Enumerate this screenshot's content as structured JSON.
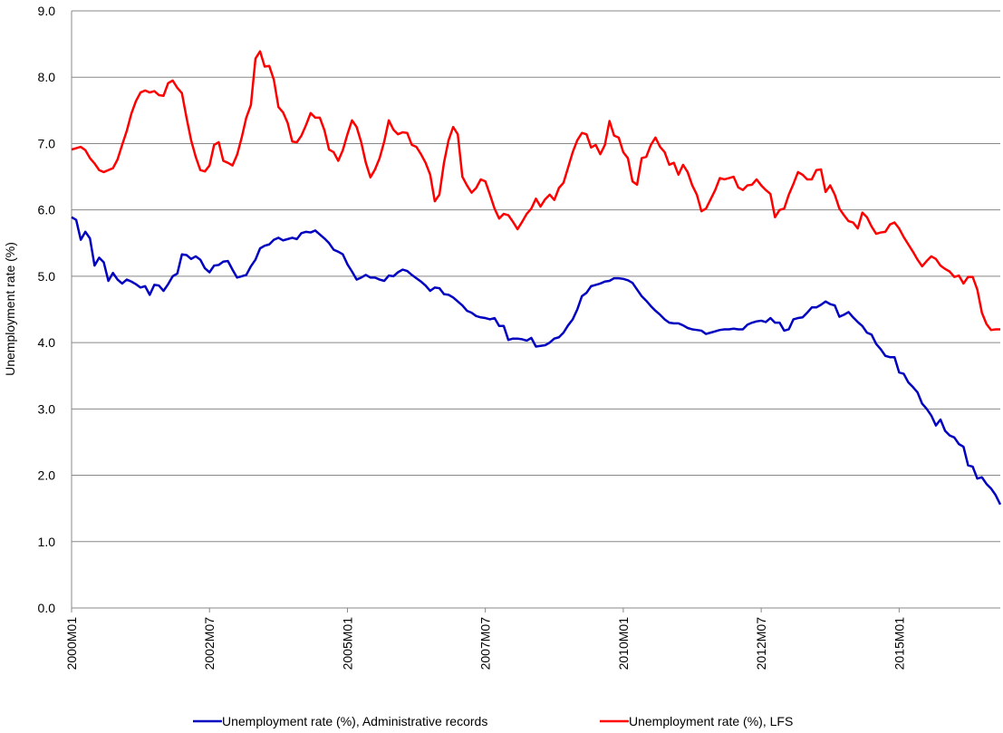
{
  "chart_data": {
    "type": "line",
    "y_label": "Unemployment rate (%)",
    "ylim": [
      0,
      9
    ],
    "yticks": [
      {
        "value": 0,
        "label": "0.0"
      },
      {
        "value": 1,
        "label": "1.0"
      },
      {
        "value": 2,
        "label": "2.0"
      },
      {
        "value": 3,
        "label": "3.0"
      },
      {
        "value": 4,
        "label": "4.0"
      },
      {
        "value": 5,
        "label": "5.0"
      },
      {
        "value": 6,
        "label": "6.0"
      },
      {
        "value": 7,
        "label": "7.0"
      },
      {
        "value": 8,
        "label": "8.0"
      },
      {
        "value": 9,
        "label": "9.0"
      }
    ],
    "grid": true,
    "legend": "bottom",
    "categories": [
      "2000M01",
      null,
      null,
      null,
      null,
      null,
      null,
      null,
      null,
      null,
      null,
      null,
      null,
      null,
      null,
      null,
      null,
      null,
      null,
      null,
      null,
      null,
      null,
      null,
      null,
      null,
      null,
      null,
      null,
      null,
      "2002M07",
      null,
      null,
      null,
      null,
      null,
      null,
      null,
      null,
      null,
      null,
      null,
      null,
      null,
      null,
      null,
      null,
      null,
      null,
      null,
      null,
      null,
      null,
      null,
      null,
      null,
      null,
      null,
      null,
      null,
      "2005M01",
      null,
      null,
      null,
      null,
      null,
      null,
      null,
      null,
      null,
      null,
      null,
      null,
      null,
      null,
      null,
      null,
      null,
      null,
      null,
      null,
      null,
      null,
      null,
      null,
      null,
      null,
      null,
      null,
      null,
      "2007M07",
      null,
      null,
      null,
      null,
      null,
      null,
      null,
      null,
      null,
      null,
      null,
      null,
      null,
      null,
      null,
      null,
      null,
      null,
      null,
      null,
      null,
      null,
      null,
      null,
      null,
      null,
      null,
      null,
      null,
      "2010M01",
      null,
      null,
      null,
      null,
      null,
      null,
      null,
      null,
      null,
      null,
      null,
      null,
      null,
      null,
      null,
      null,
      null,
      null,
      null,
      null,
      null,
      null,
      null,
      null,
      null,
      null,
      null,
      null,
      null,
      "2012M07",
      null,
      null,
      null,
      null,
      null,
      null,
      null,
      null,
      null,
      null,
      null,
      null,
      null,
      null,
      null,
      null,
      null,
      null,
      null,
      null,
      null,
      null,
      null,
      null,
      null,
      null,
      null,
      null,
      null,
      "2015M01",
      null,
      null,
      null,
      null,
      null,
      null,
      null,
      null,
      null,
      null,
      null,
      null,
      null,
      null,
      null,
      null,
      null,
      null,
      null,
      null,
      null,
      null
    ],
    "series": [
      {
        "name": "Unemployment rate (%), Administrative records",
        "color": "#0000c0",
        "values": [
          5.89,
          5.85,
          5.55,
          5.67,
          5.57,
          5.16,
          5.28,
          5.21,
          4.93,
          5.05,
          4.95,
          4.89,
          4.95,
          4.92,
          4.88,
          4.83,
          4.85,
          4.72,
          4.87,
          4.86,
          4.78,
          4.88,
          5.0,
          5.04,
          5.33,
          5.32,
          5.26,
          5.3,
          5.25,
          5.12,
          5.06,
          5.16,
          5.17,
          5.22,
          5.23,
          5.1,
          4.98,
          5.0,
          5.02,
          5.15,
          5.25,
          5.42,
          5.46,
          5.48,
          5.55,
          5.58,
          5.54,
          5.56,
          5.58,
          5.56,
          5.65,
          5.67,
          5.66,
          5.69,
          5.63,
          5.57,
          5.5,
          5.4,
          5.37,
          5.33,
          5.18,
          5.07,
          4.95,
          4.98,
          5.02,
          4.98,
          4.98,
          4.95,
          4.93,
          5.01,
          5.0,
          5.06,
          5.1,
          5.08,
          5.02,
          4.97,
          4.92,
          4.86,
          4.78,
          4.83,
          4.82,
          4.73,
          4.72,
          4.68,
          4.62,
          4.56,
          4.48,
          4.45,
          4.4,
          4.38,
          4.37,
          4.35,
          4.37,
          4.25,
          4.25,
          4.04,
          4.06,
          4.06,
          4.05,
          4.03,
          4.07,
          3.94,
          3.95,
          3.96,
          4.0,
          4.06,
          4.08,
          4.15,
          4.26,
          4.35,
          4.5,
          4.7,
          4.75,
          4.85,
          4.87,
          4.89,
          4.92,
          4.93,
          4.97,
          4.97,
          4.96,
          4.94,
          4.9,
          4.8,
          4.7,
          4.63,
          4.55,
          4.48,
          4.42,
          4.35,
          4.3,
          4.29,
          4.29,
          4.26,
          4.22,
          4.2,
          4.19,
          4.18,
          4.13,
          4.15,
          4.17,
          4.19,
          4.2,
          4.2,
          4.21,
          4.2,
          4.2,
          4.27,
          4.3,
          4.32,
          4.33,
          4.31,
          4.37,
          4.3,
          4.3,
          4.18,
          4.2,
          4.35,
          4.37,
          4.38,
          4.45,
          4.53,
          4.53,
          4.57,
          4.62,
          4.58,
          4.56,
          4.39,
          4.42,
          4.46,
          4.38,
          4.31,
          4.25,
          4.15,
          4.12,
          3.98,
          3.9,
          3.8,
          3.78,
          3.78,
          3.55,
          3.53,
          3.4,
          3.33,
          3.25,
          3.08,
          3.0,
          2.9,
          2.75,
          2.84,
          2.67,
          2.6,
          2.57,
          2.47,
          2.43,
          2.15,
          2.13,
          1.95,
          1.97,
          1.87,
          1.8,
          1.7,
          1.56
        ]
      },
      {
        "name": "Unemployment rate (%), LFS",
        "color": "#ff0000",
        "values": [
          6.91,
          6.93,
          6.95,
          6.9,
          6.78,
          6.7,
          6.6,
          6.57,
          6.6,
          6.63,
          6.76,
          6.98,
          7.19,
          7.45,
          7.64,
          7.77,
          7.8,
          7.77,
          7.79,
          7.73,
          7.72,
          7.91,
          7.95,
          7.84,
          7.76,
          7.39,
          7.05,
          6.8,
          6.6,
          6.58,
          6.67,
          6.98,
          7.02,
          6.74,
          6.71,
          6.67,
          6.83,
          7.09,
          7.39,
          7.58,
          8.28,
          8.39,
          8.16,
          8.17,
          7.96,
          7.55,
          7.47,
          7.31,
          7.03,
          7.02,
          7.12,
          7.28,
          7.46,
          7.39,
          7.39,
          7.2,
          6.91,
          6.87,
          6.74,
          6.9,
          7.14,
          7.35,
          7.25,
          7.02,
          6.71,
          6.49,
          6.61,
          6.78,
          7.03,
          7.35,
          7.21,
          7.14,
          7.17,
          7.16,
          6.98,
          6.95,
          6.84,
          6.71,
          6.53,
          6.13,
          6.23,
          6.71,
          7.05,
          7.25,
          7.14,
          6.5,
          6.37,
          6.26,
          6.33,
          6.46,
          6.43,
          6.23,
          6.02,
          5.87,
          5.94,
          5.92,
          5.82,
          5.71,
          5.82,
          5.94,
          6.02,
          6.17,
          6.05,
          6.16,
          6.23,
          6.15,
          6.33,
          6.41,
          6.64,
          6.87,
          7.05,
          7.16,
          7.14,
          6.94,
          6.98,
          6.84,
          6.98,
          7.34,
          7.12,
          7.09,
          6.87,
          6.78,
          6.43,
          6.38,
          6.78,
          6.8,
          6.98,
          7.09,
          6.95,
          6.87,
          6.68,
          6.71,
          6.53,
          6.68,
          6.57,
          6.37,
          6.23,
          5.98,
          6.02,
          6.16,
          6.3,
          6.48,
          6.46,
          6.48,
          6.5,
          6.34,
          6.3,
          6.37,
          6.38,
          6.46,
          6.37,
          6.3,
          6.24,
          5.89,
          6.0,
          6.02,
          6.23,
          6.39,
          6.57,
          6.53,
          6.46,
          6.46,
          6.6,
          6.61,
          6.27,
          6.37,
          6.23,
          6.02,
          5.92,
          5.83,
          5.81,
          5.72,
          5.96,
          5.89,
          5.75,
          5.64,
          5.66,
          5.67,
          5.78,
          5.81,
          5.72,
          5.59,
          5.48,
          5.37,
          5.25,
          5.15,
          5.23,
          5.3,
          5.26,
          5.16,
          5.11,
          5.07,
          4.99,
          5.01,
          4.89,
          4.99,
          4.99,
          4.8,
          4.45,
          4.28,
          4.19,
          4.2,
          4.2
        ]
      }
    ]
  }
}
